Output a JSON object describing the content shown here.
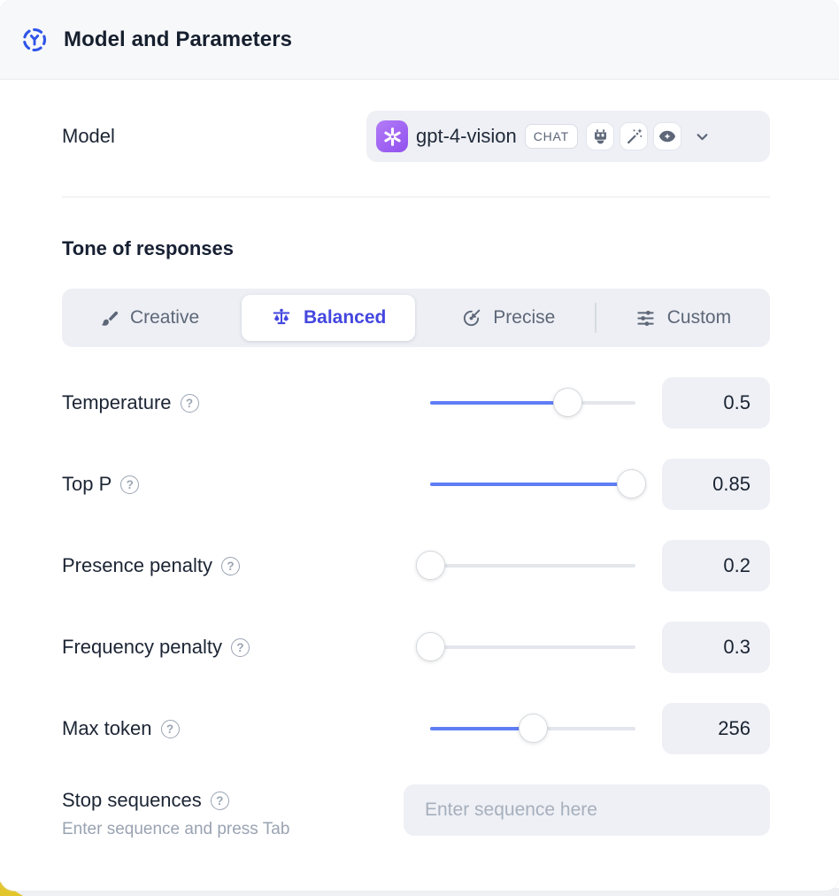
{
  "header": {
    "title": "Model and Parameters",
    "icon": "ai-dashed-circle-icon"
  },
  "model_row": {
    "label": "Model",
    "selected_model": "gpt-4-vision",
    "badge": "CHAT",
    "provider_icon": "openai-logo-icon",
    "capability_icons": [
      "robot-icon",
      "magic-wand-icon",
      "vision-eye-icon"
    ]
  },
  "tone": {
    "heading": "Tone of responses",
    "options": [
      {
        "label": "Creative",
        "icon": "paintbrush-icon",
        "selected": false
      },
      {
        "label": "Balanced",
        "icon": "balance-scale-icon",
        "selected": true
      },
      {
        "label": "Precise",
        "icon": "target-icon",
        "selected": false
      },
      {
        "label": "Custom",
        "icon": "sliders-icon",
        "selected": false
      }
    ]
  },
  "parameters": [
    {
      "label": "Temperature",
      "value": "0.5",
      "slider_percent": 67
    },
    {
      "label": "Top P",
      "value": "0.85",
      "slider_percent": 98
    },
    {
      "label": "Presence penalty",
      "value": "0.2",
      "slider_percent": 0
    },
    {
      "label": "Frequency penalty",
      "value": "0.3",
      "slider_percent": 0
    },
    {
      "label": "Max token",
      "value": "256",
      "slider_percent": 50
    }
  ],
  "stop_sequences": {
    "label": "Stop sequences",
    "hint": "Enter sequence and press Tab",
    "placeholder": "Enter sequence here"
  },
  "colors": {
    "accent_blue": "#4447df",
    "slider_blue": "#5f7ef5",
    "header_icon_blue": "#2f55e8",
    "openai_purple": "#9050ef",
    "field_gray": "#eef0f5",
    "corner_yellow": "#e3c52e"
  }
}
